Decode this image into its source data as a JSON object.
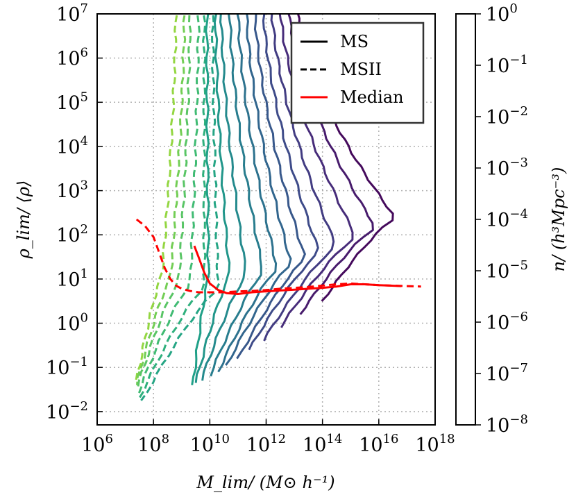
{
  "chart_data": {
    "type": "line",
    "xlabel": "M_lim/ (M⊙ h⁻¹)",
    "ylabel": "ρ_lim/ ⟨ρ⟩",
    "xscale": "log",
    "yscale": "log",
    "xlim": [
      1000000.0,
      1e+18
    ],
    "ylim": [
      0.005,
      10000000.0
    ],
    "grid": true,
    "x_tick_exponents": [
      6,
      8,
      10,
      12,
      14,
      16,
      18
    ],
    "y_tick_exponents": [
      -2,
      -1,
      0,
      1,
      2,
      3,
      4,
      5,
      6,
      7
    ],
    "tick_base": "10",
    "legend": {
      "placement": "top-right",
      "entries": [
        {
          "label": "MS",
          "style": "solid",
          "color": "#000000"
        },
        {
          "label": "MSII",
          "style": "dashed",
          "color": "#000000"
        },
        {
          "label": "Median",
          "style": "solid",
          "color": "#ff0000"
        }
      ]
    },
    "colorbar": {
      "label": "n/ (h³Mpc⁻³)",
      "colormap": "viridis",
      "scale": "log",
      "range": [
        1e-08,
        1
      ],
      "tick_exponents": [
        0,
        -1,
        -2,
        -3,
        -4,
        -5,
        -6,
        -7,
        -8
      ]
    },
    "median_lines": [
      {
        "label": "Median (MS)",
        "style": "solid",
        "x_log": [
          9.45,
          9.6,
          9.8,
          10.0,
          10.3,
          10.6,
          11.0,
          11.5,
          12.0,
          12.5,
          13.0,
          13.5,
          14.0,
          14.5,
          15.0,
          15.5,
          16.0,
          16.4,
          16.8
        ],
        "y_log": [
          1.75,
          1.5,
          1.15,
          0.9,
          0.75,
          0.68,
          0.66,
          0.7,
          0.72,
          0.74,
          0.76,
          0.78,
          0.8,
          0.83,
          0.88,
          0.88,
          0.86,
          0.85,
          0.84
        ]
      },
      {
        "label": "Median (MSII)",
        "style": "dashed",
        "x_log": [
          7.4,
          7.7,
          8.0,
          8.2,
          8.4,
          8.6,
          8.8,
          9.0,
          9.3,
          9.6,
          10.0,
          10.5,
          11.0,
          11.5,
          12.0,
          12.5,
          13.0,
          13.5,
          14.0,
          14.5,
          15.0,
          15.5,
          16.0,
          16.5,
          17.0,
          17.5
        ],
        "y_log": [
          2.35,
          2.2,
          1.95,
          1.6,
          1.25,
          1.0,
          0.85,
          0.78,
          0.73,
          0.7,
          0.7,
          0.7,
          0.72,
          0.73,
          0.75,
          0.78,
          0.8,
          0.82,
          0.85,
          0.88,
          0.9,
          0.88,
          0.86,
          0.85,
          0.84,
          0.83
        ]
      }
    ],
    "contour_series": [
      {
        "n_exp": -1.3,
        "style": "dashed",
        "x_log_top": 8.8,
        "x_log_bottom": 7.4,
        "y_log_bottom": -1.3,
        "x_log_waist": 8.3
      },
      {
        "n_exp": -1.7,
        "style": "dashed",
        "x_log_top": 9.1,
        "x_log_bottom": 7.4,
        "y_log_bottom": -1.4,
        "x_log_waist": 8.6
      },
      {
        "n_exp": -2.1,
        "style": "dashed",
        "x_log_top": 9.3,
        "x_log_bottom": 7.4,
        "y_log_bottom": -1.5,
        "x_log_waist": 8.9
      },
      {
        "n_exp": -2.5,
        "style": "dashed",
        "x_log_top": 9.6,
        "x_log_bottom": 7.45,
        "y_log_bottom": -1.6,
        "x_log_waist": 9.3
      },
      {
        "n_exp": -2.9,
        "style": "dashed",
        "x_log_top": 9.8,
        "x_log_bottom": 7.5,
        "y_log_bottom": -1.7,
        "x_log_waist": 9.8
      },
      {
        "n_exp": -3.3,
        "style": "dashed",
        "x_log_top": 10.1,
        "x_log_bottom": 7.6,
        "y_log_bottom": -1.75,
        "x_log_waist": 10.3
      },
      {
        "n_exp": -3.5,
        "style": "solid",
        "x_log_top": 9.9,
        "x_log_bottom": 9.4,
        "y_log_bottom": -1.4,
        "x_log_waist": 9.95
      },
      {
        "n_exp": -3.8,
        "style": "solid",
        "x_log_top": 10.2,
        "x_log_bottom": 9.5,
        "y_log_bottom": -1.35,
        "x_log_waist": 10.7
      },
      {
        "n_exp": -4.2,
        "style": "solid",
        "x_log_top": 10.4,
        "x_log_bottom": 9.7,
        "y_log_bottom": -1.3,
        "x_log_waist": 11.3
      },
      {
        "n_exp": -4.6,
        "style": "solid",
        "x_log_top": 10.7,
        "x_log_bottom": 10.0,
        "y_log_bottom": -1.2,
        "x_log_waist": 11.9
      },
      {
        "n_exp": -5.0,
        "style": "solid",
        "x_log_top": 11.0,
        "x_log_bottom": 10.3,
        "y_log_bottom": -1.1,
        "x_log_waist": 12.4
      },
      {
        "n_exp": -5.4,
        "style": "solid",
        "x_log_top": 11.3,
        "x_log_bottom": 10.6,
        "y_log_bottom": -0.95,
        "x_log_waist": 12.9
      },
      {
        "n_exp": -5.8,
        "style": "solid",
        "x_log_top": 11.6,
        "x_log_bottom": 11.0,
        "y_log_bottom": -0.8,
        "x_log_waist": 13.4
      },
      {
        "n_exp": -6.2,
        "style": "solid",
        "x_log_top": 11.9,
        "x_log_bottom": 11.4,
        "y_log_bottom": -0.6,
        "x_log_waist": 13.9
      },
      {
        "n_exp": -6.6,
        "style": "solid",
        "x_log_top": 12.2,
        "x_log_bottom": 11.9,
        "y_log_bottom": -0.4,
        "x_log_waist": 14.5
      },
      {
        "n_exp": -7.0,
        "style": "solid",
        "x_log_top": 12.5,
        "x_log_bottom": 12.5,
        "y_log_bottom": -0.1,
        "x_log_waist": 15.2
      },
      {
        "n_exp": -7.4,
        "style": "solid",
        "x_log_top": 12.8,
        "x_log_bottom": 13.2,
        "y_log_bottom": 0.2,
        "x_log_waist": 15.9
      },
      {
        "n_exp": -7.8,
        "style": "solid",
        "x_log_top": 13.1,
        "x_log_bottom": 14.0,
        "y_log_bottom": 0.5,
        "x_log_waist": 16.6
      }
    ]
  }
}
